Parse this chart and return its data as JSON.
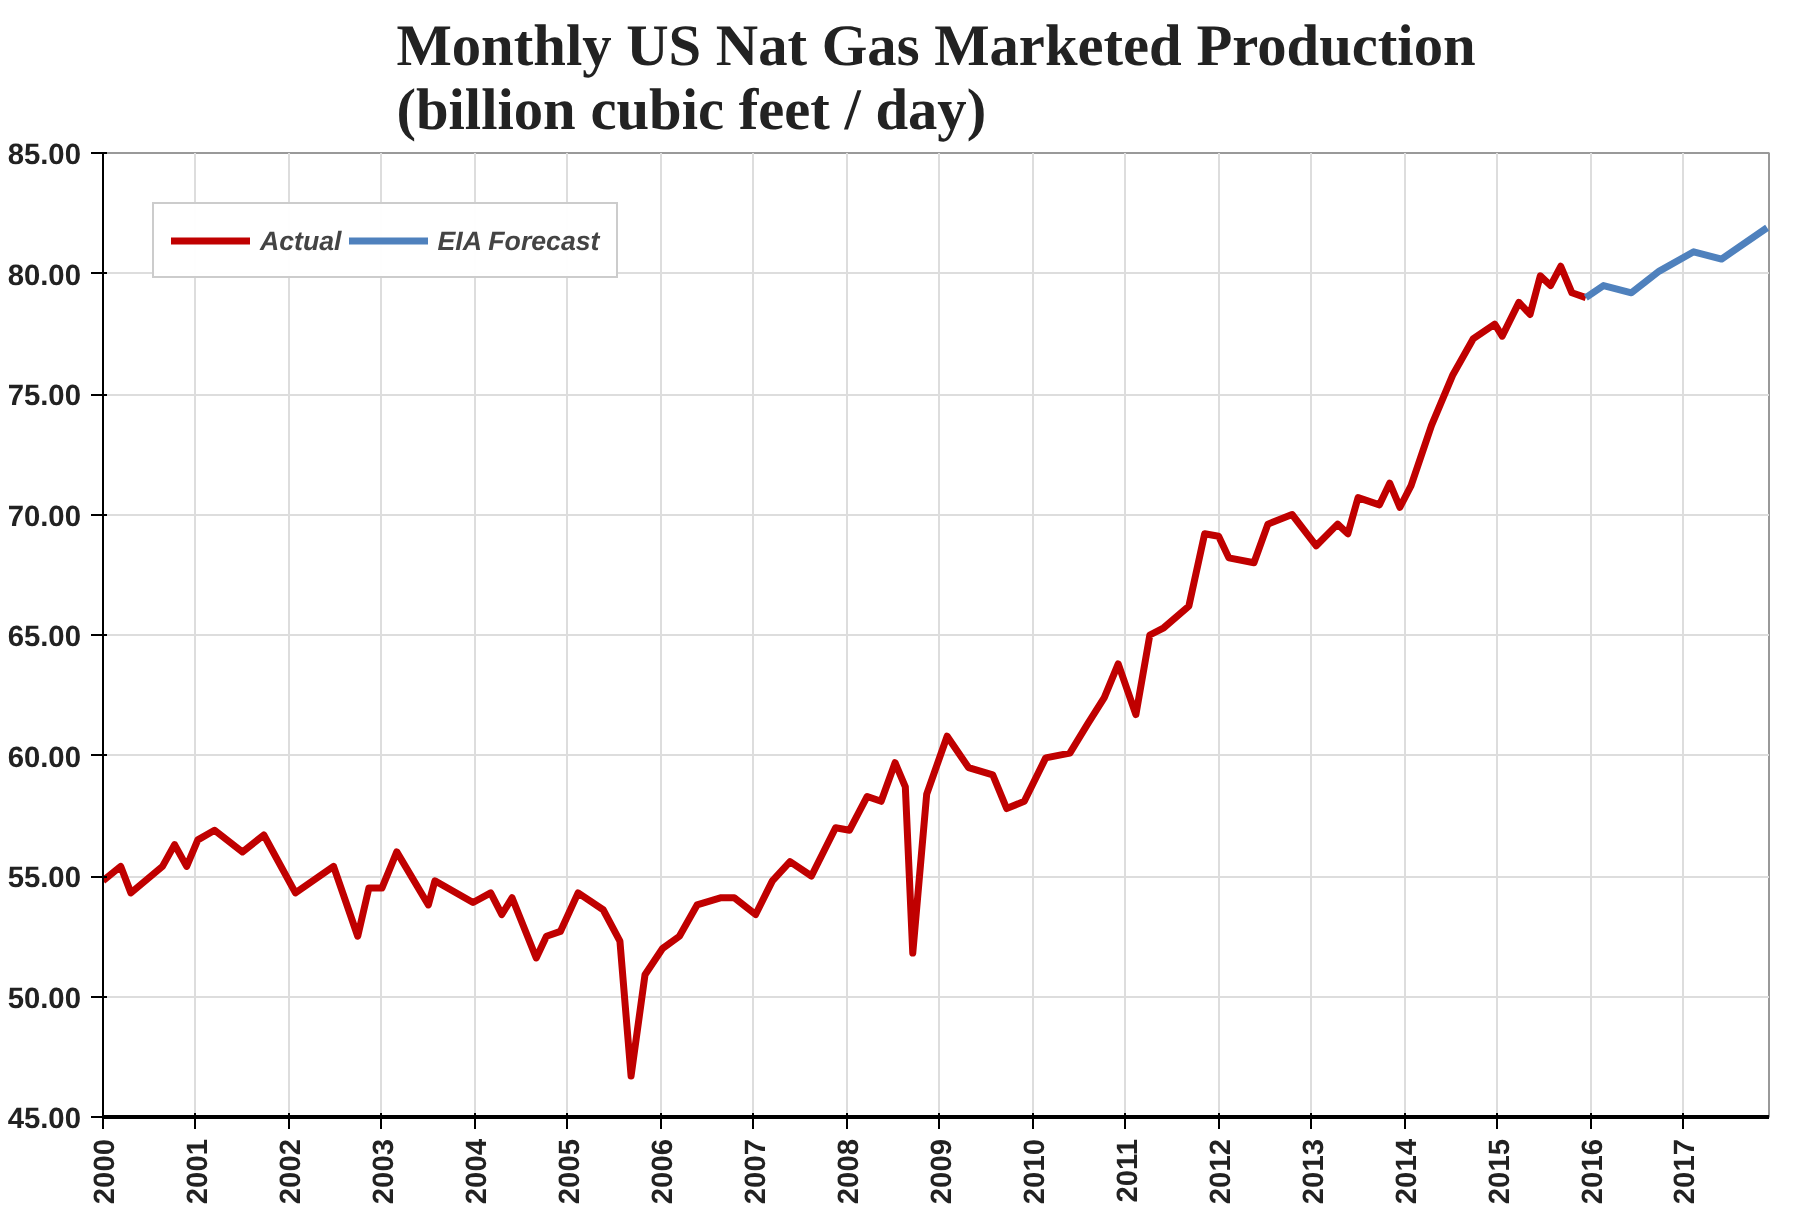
{
  "chart_data": {
    "type": "line",
    "title": "Monthly US Nat Gas Marketed Production\n(billion cubic feet / day)",
    "xlim": [
      2000,
      2017.92
    ],
    "xticks": [
      2000,
      2001,
      2002,
      2003,
      2004,
      2005,
      2006,
      2007,
      2008,
      2009,
      2010,
      2011,
      2012,
      2013,
      2014,
      2015,
      2016,
      2017
    ],
    "ylim": [
      45,
      85
    ],
    "yticks": [
      {
        "value": 45,
        "label": "45.00"
      },
      {
        "value": 50,
        "label": "50.00"
      },
      {
        "value": 55,
        "label": "55.00"
      },
      {
        "value": 60,
        "label": "60.00"
      },
      {
        "value": 65,
        "label": "65.00"
      },
      {
        "value": 70,
        "label": "70.00"
      },
      {
        "value": 75,
        "label": "75.00"
      },
      {
        "value": 80,
        "label": "80.00"
      },
      {
        "value": 85,
        "label": "85.00"
      }
    ],
    "grid": true,
    "legend": "top left",
    "line_style": "solid",
    "marker": "none",
    "series": [
      {
        "name": "Actual",
        "color": "#c00000",
        "x": [
          2000.0,
          2000.19,
          2000.3,
          2000.64,
          2000.77,
          2000.9,
          2001.02,
          2001.2,
          2001.5,
          2001.73,
          2002.07,
          2002.48,
          2002.74,
          2002.86,
          2003.0,
          2003.16,
          2003.5,
          2003.57,
          2003.98,
          2004.17,
          2004.29,
          2004.4,
          2004.66,
          2004.77,
          2004.92,
          2005.11,
          2005.38,
          2005.56,
          2005.68,
          2005.83,
          2006.02,
          2006.2,
          2006.39,
          2006.65,
          2006.79,
          2007.02,
          2007.2,
          2007.39,
          2007.62,
          2007.88,
          2008.03,
          2008.22,
          2008.37,
          2008.52,
          2008.63,
          2008.71,
          2008.86,
          2009.08,
          2009.31,
          2009.57,
          2009.72,
          2009.91,
          2010.14,
          2010.4,
          2010.59,
          2010.77,
          2010.92,
          2011.11,
          2011.26,
          2011.41,
          2011.68,
          2011.85,
          2012.0,
          2012.11,
          2012.38,
          2012.53,
          2012.79,
          2013.05,
          2013.28,
          2013.39,
          2013.5,
          2013.73,
          2013.84,
          2013.95,
          2014.07,
          2014.29,
          2014.52,
          2014.74,
          2014.97,
          2015.05,
          2015.23,
          2015.35,
          2015.46,
          2015.57,
          2015.68,
          2015.8,
          2015.95
        ],
        "values": [
          54.8,
          55.4,
          54.3,
          55.4,
          56.3,
          55.4,
          56.5,
          56.9,
          56.0,
          56.7,
          54.3,
          55.4,
          52.5,
          54.5,
          54.5,
          56.0,
          53.8,
          54.8,
          53.9,
          54.3,
          53.4,
          54.1,
          51.6,
          52.5,
          52.7,
          54.3,
          53.6,
          52.3,
          46.7,
          50.9,
          52.0,
          52.5,
          53.8,
          54.1,
          54.1,
          53.4,
          54.8,
          55.6,
          55.0,
          57.0,
          56.9,
          58.3,
          58.1,
          59.7,
          58.7,
          51.8,
          58.4,
          60.8,
          59.5,
          59.2,
          57.8,
          58.1,
          59.9,
          60.1,
          61.3,
          62.4,
          63.8,
          61.7,
          65.0,
          65.3,
          66.2,
          69.2,
          69.1,
          68.2,
          68.0,
          69.6,
          70.0,
          68.7,
          69.6,
          69.2,
          70.7,
          70.4,
          71.3,
          70.3,
          71.2,
          73.7,
          75.8,
          77.3,
          77.9,
          77.4,
          78.8,
          78.3,
          79.9,
          79.5,
          80.3,
          79.2,
          79.0
        ]
      },
      {
        "name": "EIA Forecast",
        "color": "#4f81bd",
        "x": [
          2015.95,
          2016.14,
          2016.44,
          2016.74,
          2017.11,
          2017.41,
          2017.9
        ],
        "values": [
          79.0,
          79.5,
          79.2,
          80.1,
          80.9,
          80.6,
          81.9
        ]
      }
    ]
  }
}
